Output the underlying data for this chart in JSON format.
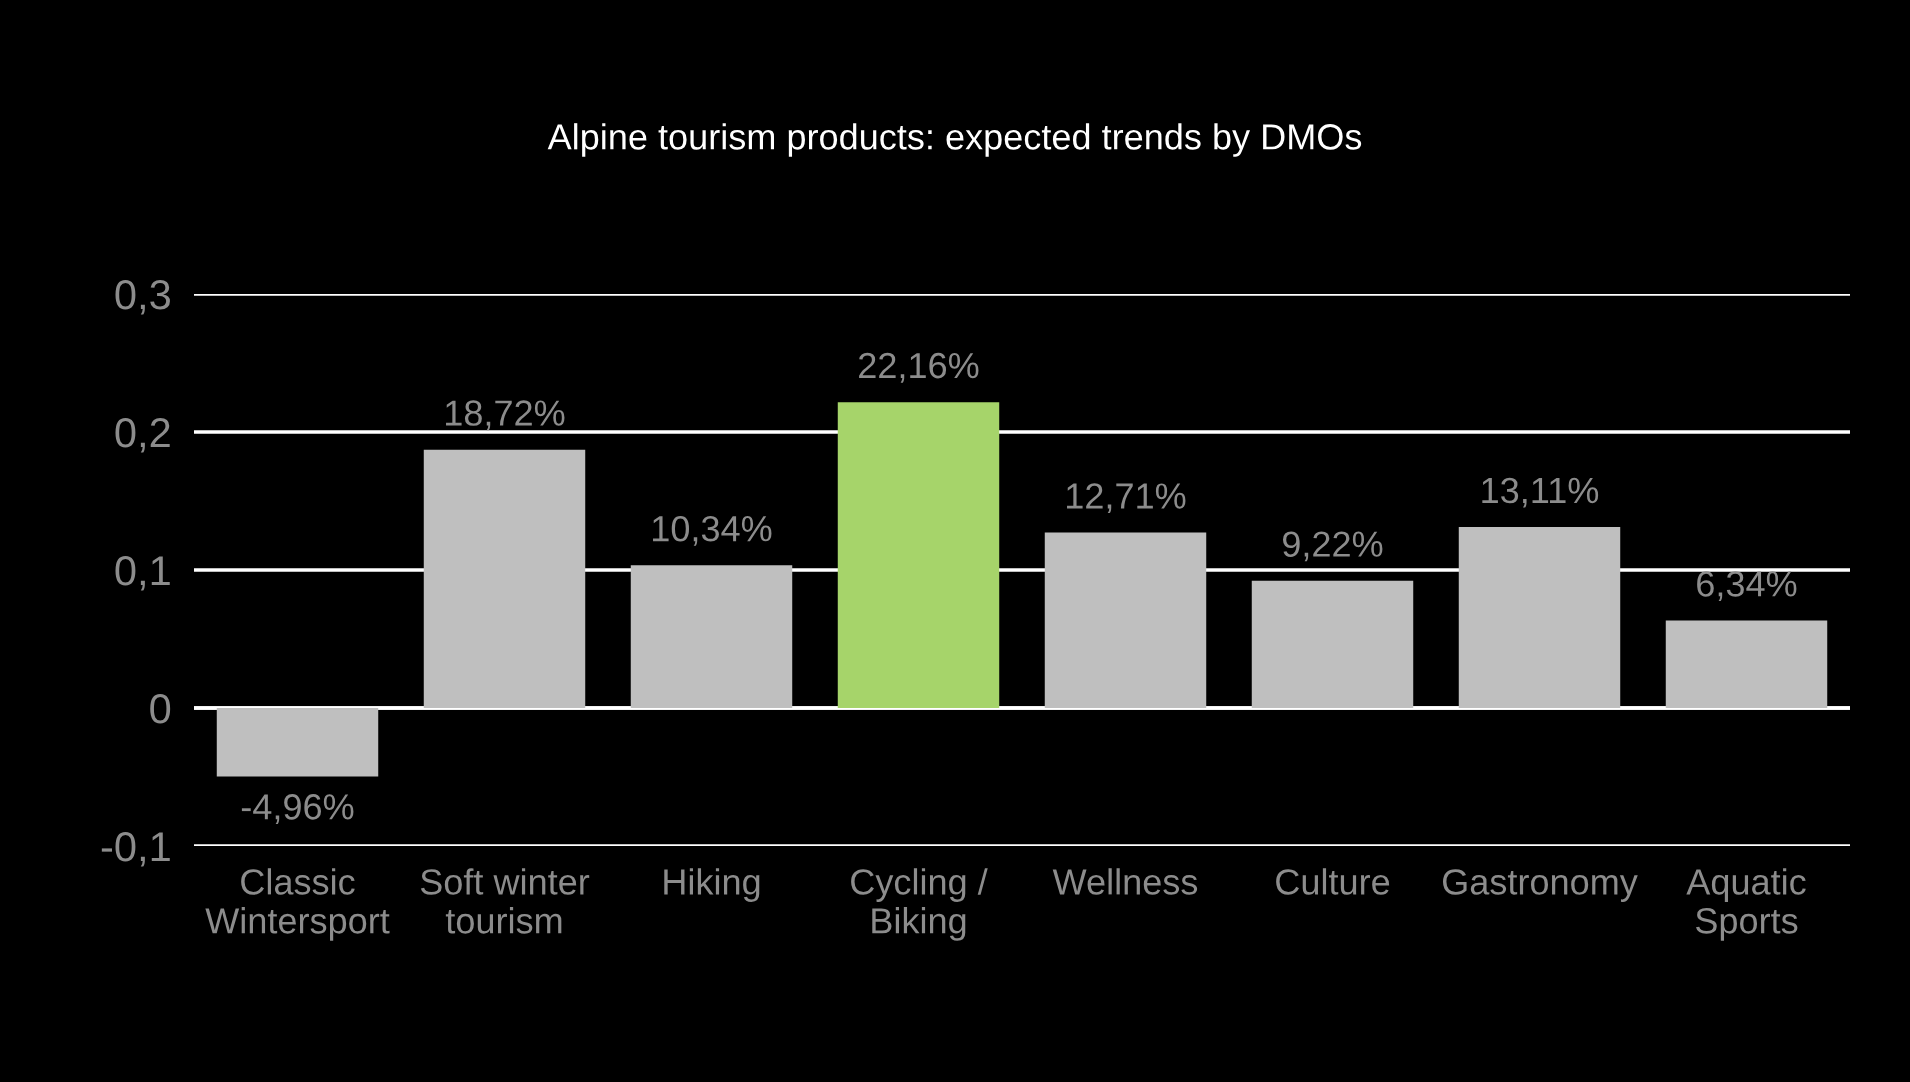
{
  "chart_data": {
    "type": "bar",
    "title": "Alpine tourism products: expected trends by DMOs",
    "categories": [
      "Classic\nWintersport",
      "Soft winter\ntourism",
      "Hiking",
      "Cycling /\nBiking",
      "Wellness",
      "Culture",
      "Gastronomy",
      "Aquatic\nSports"
    ],
    "values": [
      -0.0496,
      0.1872,
      0.1034,
      0.2216,
      0.1271,
      0.0922,
      0.1311,
      0.0634
    ],
    "value_labels": [
      "-4,96%",
      "18,72%",
      "10,34%",
      "22,16%",
      "12,71%",
      "9,22%",
      "13,11%",
      "6,34%"
    ],
    "colors": [
      "#bfbfbf",
      "#bfbfbf",
      "#bfbfbf",
      "#a6d46a",
      "#bfbfbf",
      "#bfbfbf",
      "#bfbfbf",
      "#bfbfbf"
    ],
    "ylim": [
      -0.1,
      0.3
    ],
    "yticks": [
      {
        "value": -0.1,
        "label": "-0,1"
      },
      {
        "value": 0,
        "label": "0"
      },
      {
        "value": 0.1,
        "label": "0,1"
      },
      {
        "value": 0.2,
        "label": "0,2"
      },
      {
        "value": 0.3,
        "label": "0,3"
      }
    ],
    "grid": "y",
    "legend": false
  }
}
